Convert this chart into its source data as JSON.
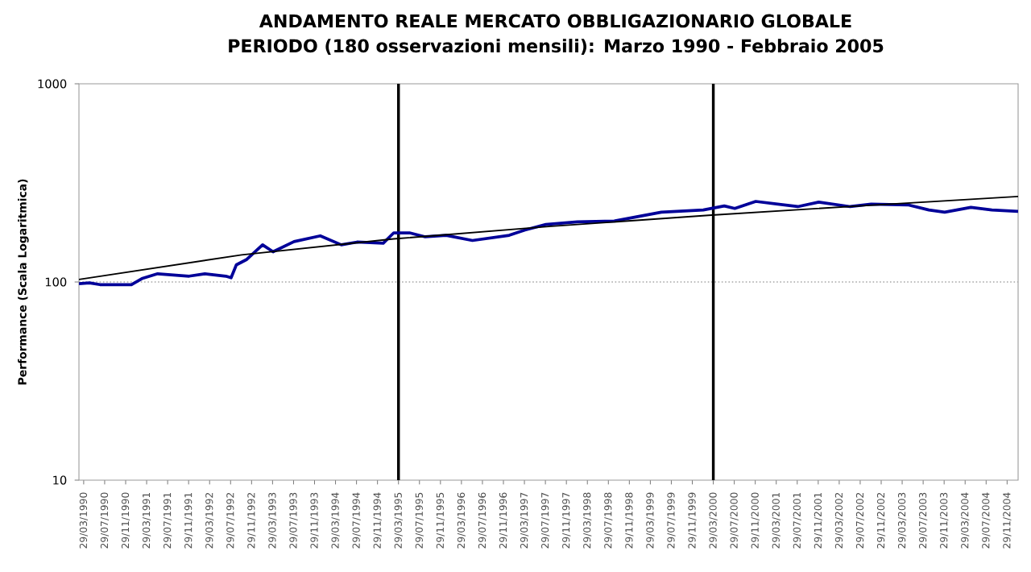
{
  "chart_data": {
    "type": "line",
    "title": "ANDAMENTO REALE MERCATO OBBLIGAZIONARIO GLOBALE",
    "subtitle": "PERIODO (180 osservazioni mensili): Marzo 1990 - Febbraio 2005",
    "ylabel": "Performance (Scala Logaritmica)",
    "log": "y",
    "marker": "none",
    "line_style": "solid",
    "xlim": [
      "1990-03",
      "2005-02"
    ],
    "ylim": [
      10,
      1000
    ],
    "yticks": [
      10,
      100,
      1000
    ],
    "xticks": [
      {
        "value": "1990-03-29",
        "label": "29/03/1990"
      },
      {
        "value": "1990-07-29",
        "label": "29/07/1990"
      },
      {
        "value": "1990-11-29",
        "label": "29/11/1990"
      },
      {
        "value": "1991-03-29",
        "label": "29/03/1991"
      },
      {
        "value": "1991-07-29",
        "label": "29/07/1991"
      },
      {
        "value": "1991-11-29",
        "label": "29/11/1991"
      },
      {
        "value": "1992-03-29",
        "label": "29/03/1992"
      },
      {
        "value": "1992-07-29",
        "label": "29/07/1992"
      },
      {
        "value": "1992-11-29",
        "label": "29/11/1992"
      },
      {
        "value": "1993-03-29",
        "label": "29/03/1993"
      },
      {
        "value": "1993-07-29",
        "label": "29/07/1993"
      },
      {
        "value": "1993-11-29",
        "label": "29/11/1993"
      },
      {
        "value": "1994-03-29",
        "label": "29/03/1994"
      },
      {
        "value": "1994-07-29",
        "label": "29/07/1994"
      },
      {
        "value": "1994-11-29",
        "label": "29/11/1994"
      },
      {
        "value": "1995-03-29",
        "label": "29/03/1995"
      },
      {
        "value": "1995-07-29",
        "label": "29/07/1995"
      },
      {
        "value": "1995-11-29",
        "label": "29/11/1995"
      },
      {
        "value": "1996-03-29",
        "label": "29/03/1996"
      },
      {
        "value": "1996-07-29",
        "label": "29/07/1996"
      },
      {
        "value": "1996-11-29",
        "label": "29/11/1996"
      },
      {
        "value": "1997-03-29",
        "label": "29/03/1997"
      },
      {
        "value": "1997-07-29",
        "label": "29/07/1997"
      },
      {
        "value": "1997-11-29",
        "label": "29/11/1997"
      },
      {
        "value": "1998-03-29",
        "label": "29/03/1998"
      },
      {
        "value": "1998-07-29",
        "label": "29/07/1998"
      },
      {
        "value": "1998-11-29",
        "label": "29/11/1998"
      },
      {
        "value": "1999-03-29",
        "label": "29/03/1999"
      },
      {
        "value": "1999-07-29",
        "label": "29/07/1999"
      },
      {
        "value": "1999-11-29",
        "label": "29/11/1999"
      },
      {
        "value": "2000-03-29",
        "label": "29/03/2000"
      },
      {
        "value": "2000-07-29",
        "label": "29/07/2000"
      },
      {
        "value": "2000-11-29",
        "label": "29/11/2000"
      },
      {
        "value": "2001-03-29",
        "label": "29/03/2001"
      },
      {
        "value": "2001-07-29",
        "label": "29/07/2001"
      },
      {
        "value": "2001-11-29",
        "label": "29/11/2001"
      },
      {
        "value": "2002-03-29",
        "label": "29/03/2002"
      },
      {
        "value": "2002-07-29",
        "label": "29/07/2002"
      },
      {
        "value": "2002-11-29",
        "label": "29/11/2002"
      },
      {
        "value": "2003-03-29",
        "label": "29/03/2003"
      },
      {
        "value": "2003-07-29",
        "label": "29/07/2003"
      },
      {
        "value": "2003-11-29",
        "label": "29/11/2003"
      },
      {
        "value": "2004-03-29",
        "label": "29/03/2004"
      },
      {
        "value": "2004-07-29",
        "label": "29/07/2004"
      },
      {
        "value": "2004-11-29",
        "label": "29/11/2004"
      }
    ],
    "ref_lines": [
      {
        "axis": "y",
        "value": 100,
        "color": "#a6a6a6",
        "line_style": "dotted"
      },
      {
        "axis": "x",
        "value": "1995-03-29",
        "color": "#000000"
      },
      {
        "axis": "x",
        "value": "2000-03-29",
        "color": "#000000"
      }
    ],
    "series": [
      {
        "color": "#000099",
        "x": [
          "1990-03",
          "1990-05",
          "1990-07",
          "1991-01",
          "1991-03",
          "1991-06",
          "1991-12",
          "1992-03",
          "1992-07",
          "1992-08",
          "1992-09",
          "1992-11",
          "1993-02",
          "1993-04",
          "1993-08",
          "1994-01",
          "1994-05",
          "1994-08",
          "1995-01",
          "1995-03",
          "1995-06",
          "1995-09",
          "1996-01",
          "1996-06",
          "1997-01",
          "1997-04",
          "1997-08",
          "1998-02",
          "1998-09",
          "1999-06",
          "2000-02",
          "2000-06",
          "2000-08",
          "2000-12",
          "2001-08",
          "2001-12",
          "2002-06",
          "2002-10",
          "2003-05",
          "2003-09",
          "2003-12",
          "2004-05",
          "2004-09",
          "2005-02"
        ],
        "values": [
          98,
          99,
          97,
          97,
          104,
          110,
          107,
          110,
          107,
          105,
          122,
          130,
          154,
          142,
          160,
          171,
          154,
          159,
          157,
          177,
          177,
          169,
          172,
          162,
          172,
          183,
          195,
          201,
          203,
          225,
          231,
          242,
          235,
          255,
          240,
          253,
          240,
          247,
          245,
          231,
          225,
          238,
          231,
          227
        ]
      },
      {
        "color": "#000000",
        "x": [
          "1990-03",
          "1992-10",
          "1995-03",
          "1997-09",
          "2000-03",
          "2002-09",
          "2005-02"
        ],
        "values": [
          103,
          137,
          165,
          191,
          217,
          243,
          270
        ]
      }
    ]
  }
}
